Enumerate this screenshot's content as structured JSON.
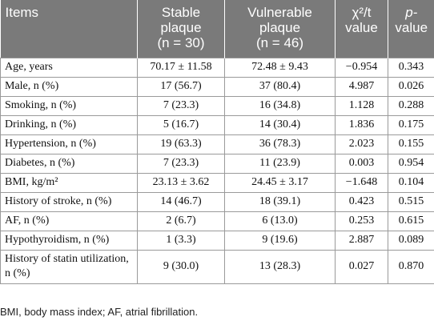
{
  "header": {
    "items": "Items",
    "stable_line1": "Stable",
    "stable_line2": "plaque",
    "stable_n": "(n = 30)",
    "vulnerable_line1": "Vulnerable",
    "vulnerable_line2": "plaque",
    "vulnerable_n": "(n = 46)",
    "stat_line1": "χ²/t",
    "stat_line2": "value",
    "p_line1": "p-",
    "p_line2": "value"
  },
  "rows": [
    {
      "item": "Age, years",
      "stable": "70.17 ± 11.58",
      "vulnerable": "72.48 ± 9.43",
      "stat": "−0.954",
      "p": "0.343"
    },
    {
      "item": "Male, n (%)",
      "stable": "17 (56.7)",
      "vulnerable": "37 (80.4)",
      "stat": "4.987",
      "p": "0.026"
    },
    {
      "item": "Smoking, n (%)",
      "stable": "7 (23.3)",
      "vulnerable": "16 (34.8)",
      "stat": "1.128",
      "p": "0.288"
    },
    {
      "item": "Drinking, n (%)",
      "stable": "5 (16.7)",
      "vulnerable": "14 (30.4)",
      "stat": "1.836",
      "p": "0.175"
    },
    {
      "item": "Hypertension, n (%)",
      "stable": "19 (63.3)",
      "vulnerable": "36 (78.3)",
      "stat": "2.023",
      "p": "0.155"
    },
    {
      "item": "Diabetes, n (%)",
      "stable": "7 (23.3)",
      "vulnerable": "11 (23.9)",
      "stat": "0.003",
      "p": "0.954"
    },
    {
      "item": "BMI, kg/m²",
      "stable": "23.13 ± 3.62",
      "vulnerable": "24.45 ± 3.17",
      "stat": "−1.648",
      "p": "0.104"
    },
    {
      "item": "History of stroke, n (%)",
      "stable": "14 (46.7)",
      "vulnerable": "18 (39.1)",
      "stat": "0.423",
      "p": "0.515"
    },
    {
      "item": "AF, n (%)",
      "stable": "2 (6.7)",
      "vulnerable": "6 (13.0)",
      "stat": "0.253",
      "p": "0.615"
    },
    {
      "item": "Hypothyroidism, n (%)",
      "stable": "1 (3.3)",
      "vulnerable": "9 (19.6)",
      "stat": "2.887",
      "p": "0.089"
    },
    {
      "item": "History of statin utilization, n (%)",
      "stable": "9 (30.0)",
      "vulnerable": "13 (28.3)",
      "stat": "0.027",
      "p": "0.870"
    }
  ],
  "footnote": "BMI, body mass index; AF, atrial fibrillation."
}
